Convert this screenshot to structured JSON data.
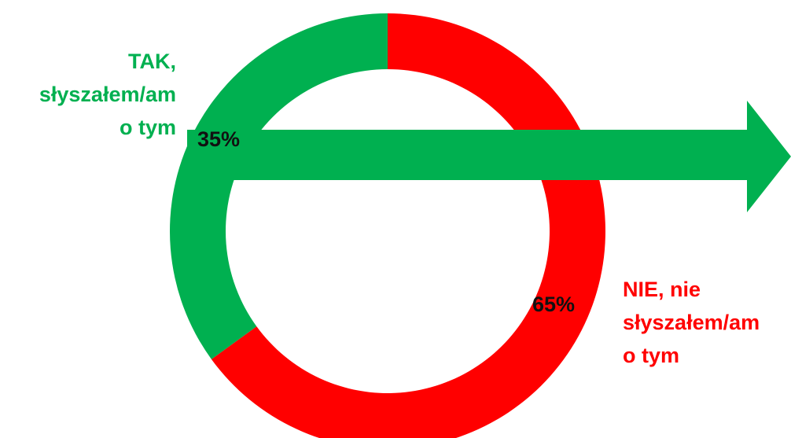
{
  "chart_data": {
    "type": "pie",
    "title": "",
    "slices": [
      {
        "name": "TAK, słyszałem/am o tym",
        "value": 35,
        "label": "35%",
        "color": "#00b050"
      },
      {
        "name": "NIE, nie słyszałem/am o tym",
        "value": 65,
        "label": "65%",
        "color": "#ff0000"
      }
    ],
    "category_labels": {
      "tak": [
        "TAK,",
        "słyszałem/am",
        "o tym"
      ],
      "nie": [
        "NIE, nie",
        "słyszałem/am",
        "o tym"
      ]
    },
    "legend": "none",
    "donut": true
  }
}
